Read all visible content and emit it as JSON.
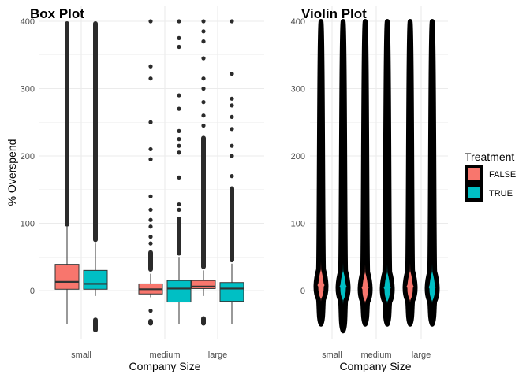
{
  "colors": {
    "false_fill": "#F8766D",
    "true_fill": "#00BFC4",
    "ink": "#000000",
    "outlier": "#2b2b2b",
    "grid": "#ebebeb",
    "tick_text": "#4d4d4d"
  },
  "legend": {
    "title": "Treatment",
    "placement": "right",
    "items": [
      {
        "label": "FALSE",
        "color": "#F8766D"
      },
      {
        "label": "TRUE",
        "color": "#00BFC4"
      }
    ]
  },
  "chart_data": [
    {
      "type": "box",
      "title": "Box Plot",
      "xlabel": "Company Size",
      "ylabel": "% Overspend",
      "categories": [
        "small",
        "medium",
        "large"
      ],
      "ylim": [
        -65,
        410
      ],
      "yticks": [
        0,
        100,
        200,
        300,
        400
      ],
      "grid": true,
      "series": [
        {
          "name": "FALSE",
          "color": "#F8766D",
          "boxes": [
            {
              "whisker_low": -50,
              "q1": 2,
              "median": 13,
              "q3": 39,
              "whisker_high": 95,
              "outliers_dense": [
                95,
                400
              ],
              "outliers_low_dense": [],
              "outliers": []
            },
            {
              "whisker_low": -10,
              "q1": -5,
              "median": 2,
              "q3": 10,
              "whisker_high": 25,
              "outliers_dense": [
                28,
                60
              ],
              "outliers_low_dense": [
                -42,
                -52
              ],
              "outliers": [
                -30,
                70,
                80,
                95,
                105,
                120,
                140,
                195,
                210,
                250,
                315,
                333,
                400
              ]
            },
            {
              "whisker_low": -8,
              "q1": 3,
              "median": 6,
              "q3": 15,
              "whisker_high": 30,
              "outliers_dense": [
                32,
                230
              ],
              "outliers_low_dense": [
                -38,
                -52
              ],
              "outliers": [
                245,
                260,
                280,
                300,
                315,
                345,
                370,
                385,
                400
              ]
            }
          ]
        },
        {
          "name": "TRUE",
          "color": "#00BFC4",
          "boxes": [
            {
              "whisker_low": -8,
              "q1": 2,
              "median": 10,
              "q3": 30,
              "whisker_high": 70,
              "outliers_dense": [
                72,
                400
              ],
              "outliers_low_dense": [
                -40,
                -62
              ],
              "outliers": []
            },
            {
              "whisker_low": -50,
              "q1": -17,
              "median": 3,
              "q3": 15,
              "whisker_high": 50,
              "outliers_dense": [
                52,
                110
              ],
              "outliers_low_dense": [],
              "outliers": [
                120,
                128,
                168,
                205,
                215,
                225,
                237,
                270,
                290,
                362,
                375,
                400
              ]
            },
            {
              "whisker_low": -50,
              "q1": -16,
              "median": 3,
              "q3": 12,
              "whisker_high": 40,
              "outliers_dense": [
                42,
                155
              ],
              "outliers_low_dense": [],
              "outliers": [
                170,
                200,
                215,
                240,
                258,
                275,
                285,
                322,
                400
              ]
            }
          ]
        }
      ]
    },
    {
      "type": "violin",
      "title": "Violin Plot",
      "xlabel": "Company Size",
      "ylabel": "",
      "categories": [
        "small",
        "medium",
        "large"
      ],
      "ylim": [
        -65,
        410
      ],
      "yticks": [
        0,
        100,
        200,
        300,
        400
      ],
      "grid": true,
      "series": [
        {
          "name": "FALSE",
          "color": "#F8766D",
          "violins": [
            {
              "min": -50,
              "max": 400,
              "peak": 8
            },
            {
              "min": -50,
              "max": 400,
              "peak": 4
            },
            {
              "min": -50,
              "max": 400,
              "peak": 6
            }
          ]
        },
        {
          "name": "TRUE",
          "color": "#00BFC4",
          "violins": [
            {
              "min": -60,
              "max": 400,
              "peak": 6
            },
            {
              "min": -50,
              "max": 400,
              "peak": 4
            },
            {
              "min": -50,
              "max": 400,
              "peak": 5
            }
          ]
        }
      ]
    }
  ]
}
